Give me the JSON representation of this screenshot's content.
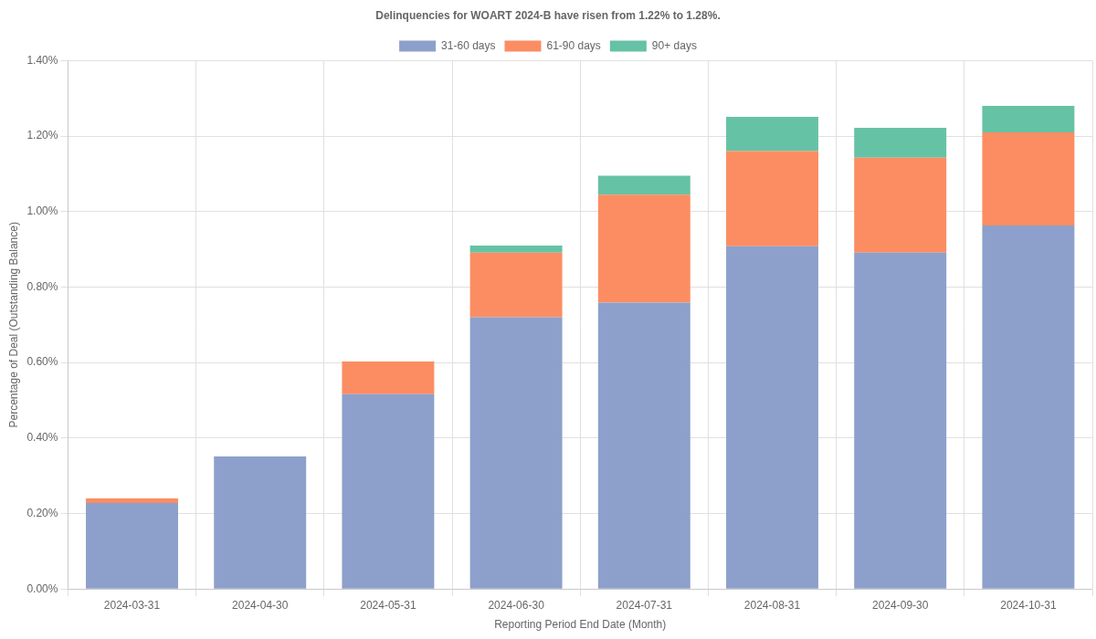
{
  "chart_data": {
    "type": "bar",
    "title": "Delinquencies for WOART 2024-B have risen from 1.22% to 1.28%.",
    "x_label": "Reporting Period End Date (Month)",
    "y_label": "Percentage of Deal (Outstanding Balance)",
    "categories": [
      "2024-03-31",
      "2024-04-30",
      "2024-05-31",
      "2024-06-30",
      "2024-07-31",
      "2024-08-31",
      "2024-09-30",
      "2024-10-31"
    ],
    "series": [
      {
        "name": "31-60 days",
        "color": "#8da0cb",
        "values": [
          0.228,
          0.351,
          0.516,
          0.72,
          0.759,
          0.908,
          0.891,
          0.963
        ]
      },
      {
        "name": "61-90 days",
        "color": "#fc8d62",
        "values": [
          0.012,
          0,
          0.087,
          0.171,
          0.286,
          0.252,
          0.252,
          0.247
        ]
      },
      {
        "name": "90+ days",
        "color": "#66c2a5",
        "values": [
          0,
          0,
          0,
          0.019,
          0.05,
          0.091,
          0.079,
          0.07
        ]
      }
    ],
    "ylim": [
      0,
      1.4
    ],
    "yticks": [
      {
        "value": 0,
        "label": "0.00%"
      },
      {
        "value": 0.2,
        "label": "0.20%"
      },
      {
        "value": 0.4,
        "label": "0.40%"
      },
      {
        "value": 0.6,
        "label": "0.60%"
      },
      {
        "value": 0.8,
        "label": "0.80%"
      },
      {
        "value": 1.0,
        "label": "1.00%"
      },
      {
        "value": 1.2,
        "label": "1.20%"
      },
      {
        "value": 1.4,
        "label": "1.40%"
      }
    ],
    "stacked": true,
    "grid": true,
    "legend": "top"
  }
}
